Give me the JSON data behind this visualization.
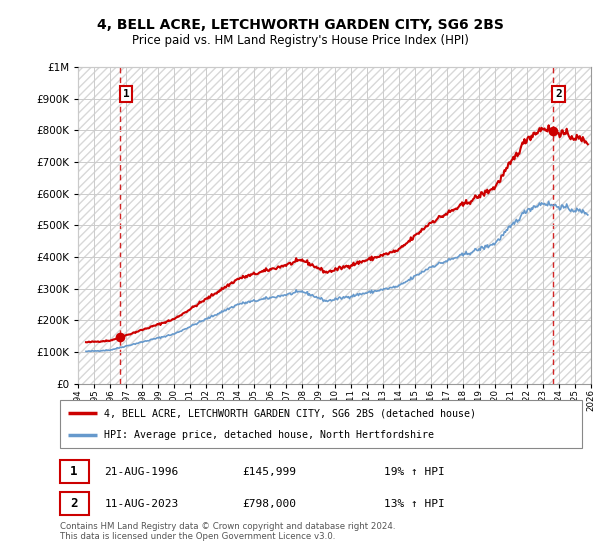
{
  "title": "4, BELL ACRE, LETCHWORTH GARDEN CITY, SG6 2BS",
  "subtitle": "Price paid vs. HM Land Registry's House Price Index (HPI)",
  "legend_line1": "4, BELL ACRE, LETCHWORTH GARDEN CITY, SG6 2BS (detached house)",
  "legend_line2": "HPI: Average price, detached house, North Hertfordshire",
  "annotation1_date": "21-AUG-1996",
  "annotation1_price": "£145,999",
  "annotation1_hpi": "19% ↑ HPI",
  "annotation2_date": "11-AUG-2023",
  "annotation2_price": "£798,000",
  "annotation2_hpi": "13% ↑ HPI",
  "footer": "Contains HM Land Registry data © Crown copyright and database right 2024.\nThis data is licensed under the Open Government Licence v3.0.",
  "sale1_year": 1996.64,
  "sale1_price": 145999,
  "sale2_year": 2023.62,
  "sale2_price": 798000,
  "xmin": 1994,
  "xmax": 2026,
  "ymin": 0,
  "ymax": 1000000,
  "price_color": "#cc0000",
  "hpi_color": "#6699cc",
  "background_color": "#ffffff",
  "grid_color": "#cccccc"
}
